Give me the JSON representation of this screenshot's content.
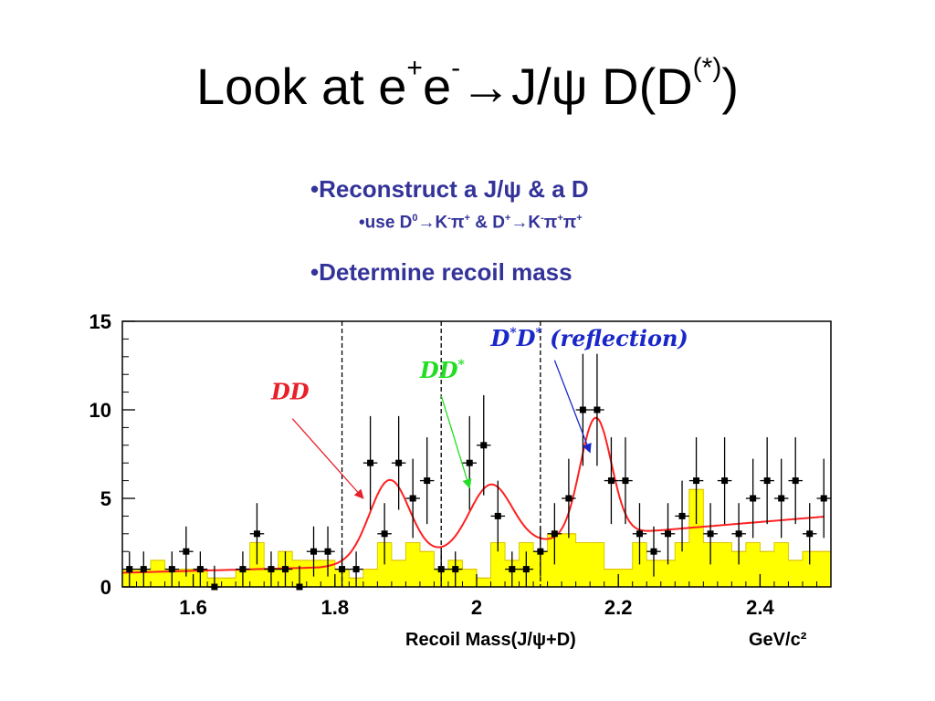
{
  "slide": {
    "title_main": "Look at e",
    "title_sup1": "+",
    "title_e2": "e",
    "title_sup2": "-",
    "title_arrow": "→",
    "title_rest": "J/ψ D(D",
    "title_sup3": "(*)",
    "title_close": ")",
    "bullet1": "•Reconstruct a J/ψ & a D",
    "bullet2_prefix": "•use D",
    "bullet2_sup0": "0",
    "bullet2_mid1": "→K",
    "bullet2_supm1": "-",
    "bullet2_pi1": "π",
    "bullet2_supp1": "+",
    "bullet2_mid2": " & D",
    "bullet2_supp2": "+",
    "bullet2_mid3": "→K",
    "bullet2_supm2": "-",
    "bullet2_pi2": "π",
    "bullet2_supp3": "+",
    "bullet2_pi3": "π",
    "bullet2_supp4": "+",
    "bullet3": "•Determine recoil mass"
  },
  "chart_data": {
    "type": "scatter",
    "xlabel": "Recoil Mass(J/ψ+D)",
    "xunit": "GeV/c²",
    "xlim": [
      1.5,
      2.5
    ],
    "ylim": [
      0,
      15
    ],
    "x_ticks": [
      {
        "value": 1.6,
        "label": "1.6"
      },
      {
        "value": 1.8,
        "label": "1.8"
      },
      {
        "value": 2.0,
        "label": "2"
      },
      {
        "value": 2.2,
        "label": "2.2"
      },
      {
        "value": 2.4,
        "label": "2.4"
      }
    ],
    "y_ticks": [
      {
        "value": 0,
        "label": "0"
      },
      {
        "value": 5,
        "label": "5"
      },
      {
        "value": 10,
        "label": "10"
      },
      {
        "value": 15,
        "label": "15"
      }
    ],
    "dashed_lines_x": [
      1.81,
      1.95,
      2.09
    ],
    "series": [
      {
        "kind": "points_with_errors",
        "color": "#000000",
        "x": [
          1.51,
          1.53,
          1.57,
          1.59,
          1.61,
          1.63,
          1.67,
          1.69,
          1.71,
          1.73,
          1.75,
          1.77,
          1.79,
          1.81,
          1.83,
          1.85,
          1.87,
          1.89,
          1.91,
          1.93,
          1.95,
          1.97,
          1.99,
          2.01,
          2.03,
          2.05,
          2.07,
          2.09,
          2.11,
          2.13,
          2.15,
          2.17,
          2.19,
          2.21,
          2.23,
          2.25,
          2.27,
          2.29,
          2.31,
          2.33,
          2.35,
          2.37,
          2.39,
          2.41,
          2.43,
          2.45,
          2.47,
          2.49
        ],
        "y": [
          1,
          1,
          1,
          2,
          1,
          0,
          1,
          3,
          1,
          1,
          0,
          2,
          2,
          1,
          1,
          7,
          3,
          7,
          5,
          6,
          1,
          1,
          7,
          8,
          4,
          1,
          1,
          2,
          3,
          5,
          10,
          10,
          6,
          6,
          3,
          2,
          3,
          4,
          6,
          3,
          6,
          3,
          5,
          6,
          5,
          6,
          3,
          5
        ]
      },
      {
        "kind": "background_histogram",
        "color": "#ffff00",
        "edges": [
          1.5,
          1.52,
          1.54,
          1.56,
          1.58,
          1.6,
          1.62,
          1.64,
          1.66,
          1.68,
          1.7,
          1.72,
          1.74,
          1.76,
          1.78,
          1.8,
          1.82,
          1.84,
          1.86,
          1.88,
          1.9,
          1.92,
          1.94,
          1.96,
          1.98,
          2.0,
          2.02,
          2.04,
          2.06,
          2.08,
          2.1,
          2.12,
          2.14,
          2.16,
          2.18,
          2.2,
          2.22,
          2.24,
          2.26,
          2.28,
          2.3,
          2.32,
          2.34,
          2.36,
          2.38,
          2.4,
          2.42,
          2.44,
          2.46,
          2.48,
          2.5
        ],
        "values": [
          1,
          1,
          1.5,
          1,
          1,
          1,
          0.5,
          0.5,
          1,
          2.5,
          1,
          2,
          1.5,
          1.5,
          1.5,
          1,
          0.5,
          1,
          2.5,
          1.5,
          2.5,
          2,
          1,
          1.5,
          1,
          0.5,
          2.5,
          1.5,
          2.5,
          2,
          3,
          3,
          2.5,
          2.5,
          1,
          1,
          2.5,
          1.5,
          1.5,
          2.5,
          5.5,
          2.5,
          2.5,
          2,
          2.5,
          2,
          2.5,
          1.5,
          2,
          2
        ]
      },
      {
        "kind": "fit_curve",
        "color": "#ff2020",
        "model": {
          "baseline": [
            [
              1.5,
              0.8
            ],
            [
              1.78,
              1.1
            ],
            [
              2.2,
              3.0
            ],
            [
              2.5,
              4.0
            ]
          ],
          "peaks": [
            {
              "mean": 1.877,
              "sigma": 0.028,
              "amp": 4.5
            },
            {
              "mean": 2.02,
              "sigma": 0.03,
              "amp": 3.6
            },
            {
              "mean": 2.168,
              "sigma": 0.022,
              "amp": 6.7
            }
          ]
        }
      }
    ],
    "annotations": [
      {
        "text": "DD",
        "color": "#e8202a",
        "at": [
          1.71,
          10.6
        ],
        "arrow_to": [
          1.84,
          5.0
        ],
        "arrow_from": [
          1.74,
          9.5
        ]
      },
      {
        "text": "DD",
        "sup": "*",
        "color": "#22dd22",
        "at": [
          1.92,
          11.8
        ],
        "arrow_to": [
          1.99,
          5.6
        ],
        "arrow_from": [
          1.95,
          10.8
        ]
      },
      {
        "text": "D",
        "sup": "*",
        "text2": "D",
        "sup2": "*",
        "text3": " (reflection)",
        "color": "#1a28c8",
        "at": [
          2.02,
          13.6
        ],
        "arrow_to": [
          2.16,
          7.6
        ],
        "arrow_from": [
          2.11,
          12.8
        ]
      }
    ]
  }
}
